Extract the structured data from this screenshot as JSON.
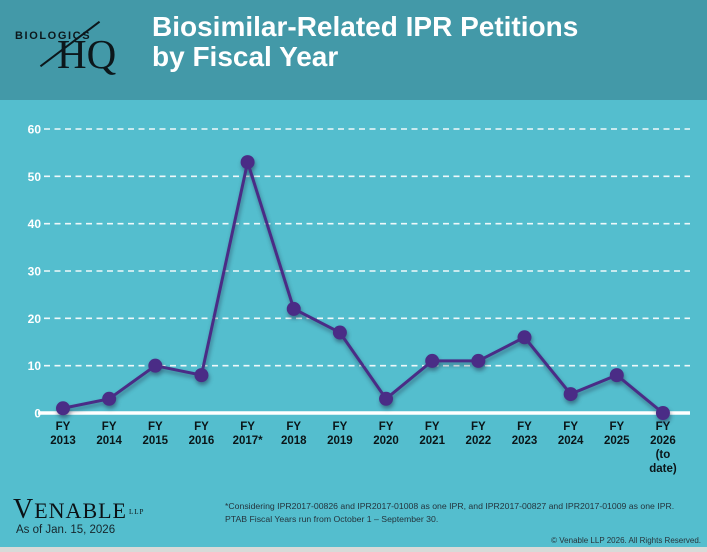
{
  "header": {
    "logo_top": "BIOLOGICS",
    "logo_bottom": "HQ",
    "title_line1": "Biosimilar-Related IPR Petitions",
    "title_line2": "by Fiscal Year"
  },
  "chart_data": {
    "type": "line",
    "title": "Biosimilar-Related IPR Petitions by Fiscal Year",
    "categories": [
      "FY 2013",
      "FY 2014",
      "FY 2015",
      "FY 2016",
      "FY 2017*",
      "FY 2018",
      "FY 2019",
      "FY 2020",
      "FY 2021",
      "FY 2022",
      "FY 2023",
      "FY 2024",
      "FY 2025",
      "FY 2026 (to date)"
    ],
    "category_label_lines": [
      [
        "FY",
        "2013"
      ],
      [
        "FY",
        "2014"
      ],
      [
        "FY",
        "2015"
      ],
      [
        "FY",
        "2016"
      ],
      [
        "FY",
        "2017*"
      ],
      [
        "FY",
        "2018"
      ],
      [
        "FY",
        "2019"
      ],
      [
        "FY",
        "2020"
      ],
      [
        "FY",
        "2021"
      ],
      [
        "FY",
        "2022"
      ],
      [
        "FY",
        "2023"
      ],
      [
        "FY",
        "2024"
      ],
      [
        "FY",
        "2025"
      ],
      [
        "FY",
        "2026",
        "(to",
        "date)"
      ]
    ],
    "values": [
      1,
      3,
      10,
      8,
      53,
      22,
      17,
      3,
      11,
      11,
      16,
      4,
      8,
      0
    ],
    "xlabel": "",
    "ylabel": "",
    "ylim": [
      0,
      60
    ],
    "yticks": [
      0,
      10,
      20,
      30,
      40,
      50,
      60
    ],
    "grid": "horizontal-dashed",
    "legend": "none",
    "line_color": "#4A2C86",
    "marker": "circle",
    "plot_background": "#54BECE",
    "gridline_color": "#ffffff",
    "axis_label_color_y": "#ffffff",
    "axis_label_color_x": "#0a1518"
  },
  "footer": {
    "brand_name": "VENABLE",
    "brand_suffix": "LLP",
    "as_of": "As of Jan. 15, 2026",
    "footnote_line1": "*Considering IPR2017-00826 and IPR2017-01008 as one IPR, and IPR2017-00827 and IPR2017-01009 as one IPR.",
    "footnote_line2": "PTAB Fiscal Years run from October 1 – September 30.",
    "copyright": "© Venable LLP 2026. All Rights Reserved."
  },
  "colors": {
    "header_background": "#4399A8",
    "chart_background": "#54BECE",
    "series_purple": "#4A2C86",
    "bottom_strip": "#d8dad8"
  }
}
